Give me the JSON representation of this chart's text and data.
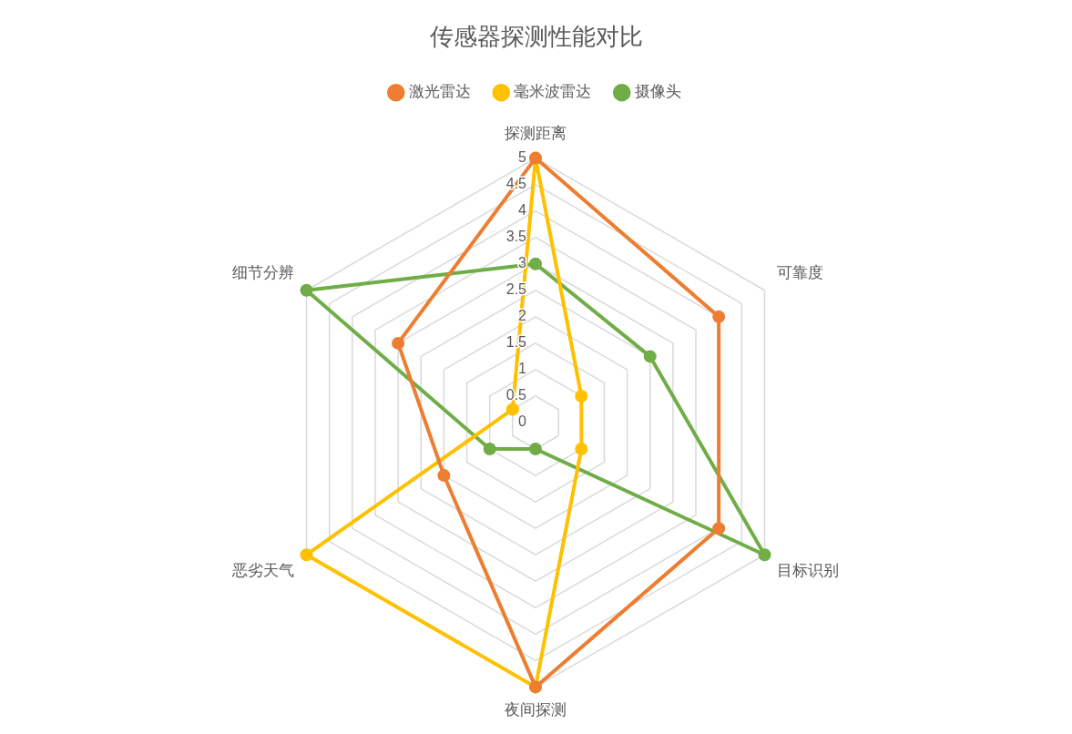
{
  "chart_data": {
    "type": "radar",
    "title": "传感器探测性能对比",
    "categories": [
      "探测距离",
      "可靠度",
      "目标识别",
      "夜间探测",
      "恶劣天气",
      "细节分辨"
    ],
    "series": [
      {
        "name": "激光雷达",
        "color": "#ed7d31",
        "values": [
          5,
          4,
          4,
          5,
          2,
          3
        ]
      },
      {
        "name": "毫米波雷达",
        "color": "#ffc000",
        "values": [
          5,
          1,
          1,
          5,
          5,
          0.5
        ]
      },
      {
        "name": "摄像头",
        "color": "#70ad47",
        "values": [
          3,
          2.5,
          5,
          0.5,
          1,
          5
        ]
      }
    ],
    "ylim": [
      0,
      5
    ],
    "yticks": [
      0,
      0.5,
      1,
      1.5,
      2,
      2.5,
      3,
      3.5,
      4,
      4.5,
      5
    ],
    "grid": true,
    "legend": "top",
    "marker": "circle",
    "line_style": "solid"
  }
}
